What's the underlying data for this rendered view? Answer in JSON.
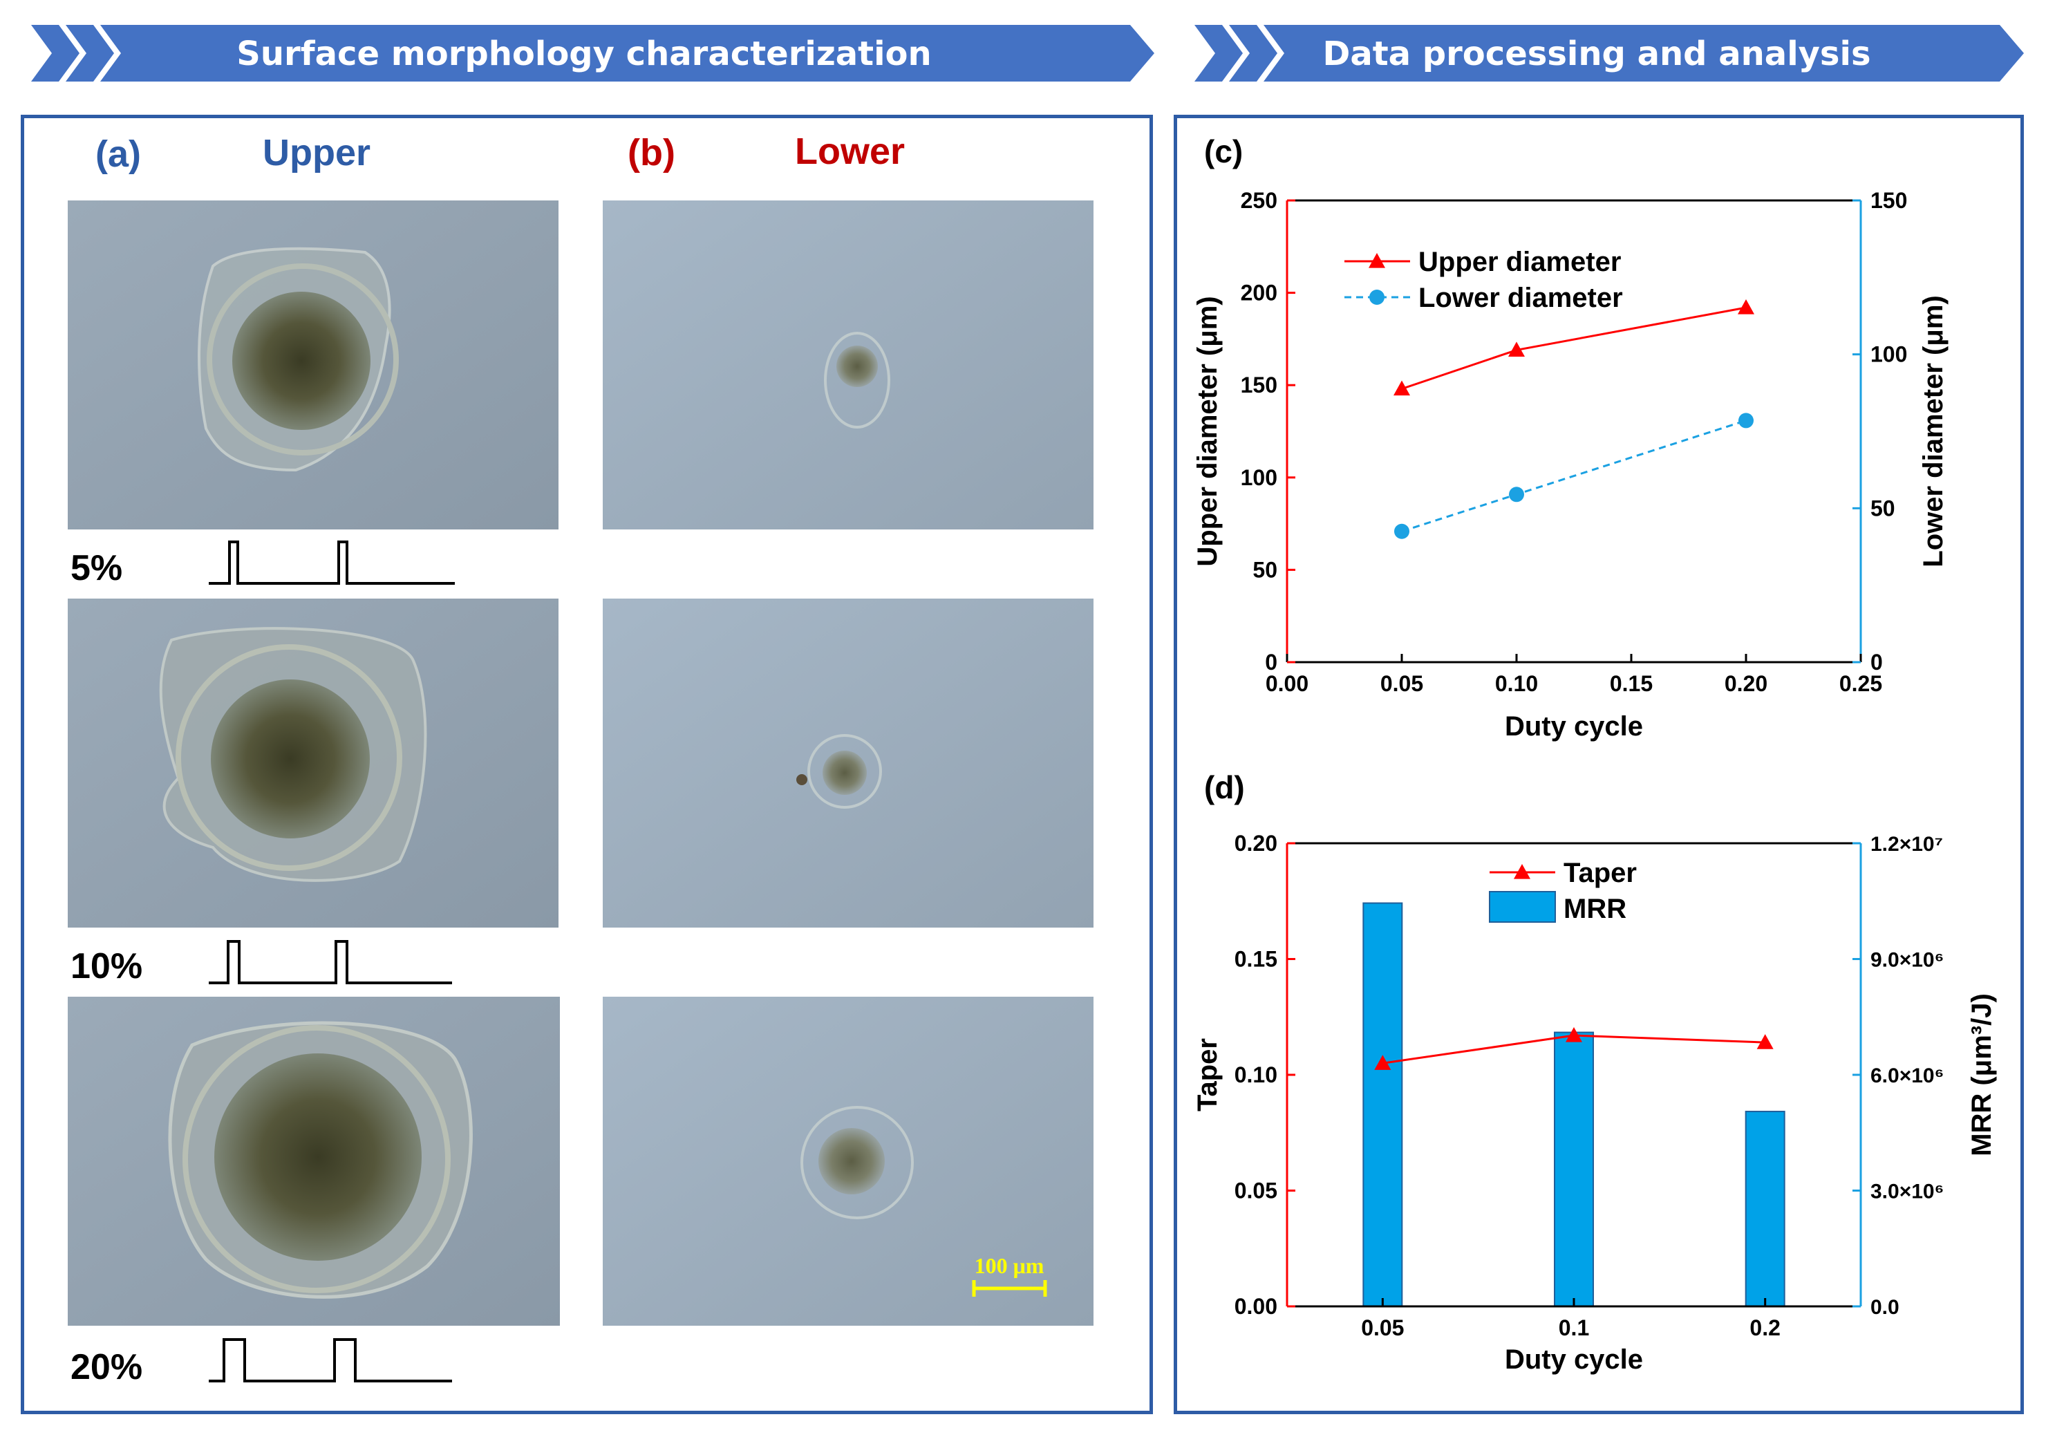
{
  "banners": {
    "left": "Surface morphology characterization",
    "right": "Data processing and analysis"
  },
  "panel_a": {
    "letter": "(a)",
    "title": "Upper"
  },
  "panel_b": {
    "letter": "(b)",
    "title": "Lower"
  },
  "duty_labels": [
    "5%",
    "10%",
    "20%"
  ],
  "scale_bar": "100 μm",
  "colors": {
    "banner": "#4472C4",
    "frame": "#2E5CA6",
    "upper": "#FF0000",
    "lower": "#1BA1E2",
    "bar": "#00A2E8"
  },
  "chart_data": [
    {
      "panel": "(c)",
      "type": "line",
      "xlabel": "Duty cycle",
      "ylabel": "Upper diameter (μm)",
      "y2label": "Lower diameter (μm)",
      "xlim": [
        0,
        0.25
      ],
      "ylim": [
        0,
        250
      ],
      "y2lim": [
        0,
        150
      ],
      "xticks": [
        "0.00",
        "0.05",
        "0.10",
        "0.15",
        "0.20",
        "0.25"
      ],
      "yticks": [
        "0",
        "50",
        "100",
        "150",
        "200",
        "250"
      ],
      "y2ticks": [
        "0",
        "50",
        "100",
        "150"
      ],
      "series": [
        {
          "name": "Upper diameter",
          "axis": "left",
          "marker": "triangle",
          "style": "solid",
          "x": [
            0.05,
            0.1,
            0.2
          ],
          "values": [
            148,
            169,
            192
          ]
        },
        {
          "name": "Lower diameter",
          "axis": "right",
          "marker": "circle",
          "style": "dashed",
          "x": [
            0.05,
            0.1,
            0.2
          ],
          "values": [
            42.5,
            54.5,
            78.5
          ]
        }
      ]
    },
    {
      "panel": "(d)",
      "type": "bar",
      "xlabel": "Duty cycle",
      "ylabel": "Taper",
      "y2label": "MRR (μm³/J)",
      "categories": [
        "0.05",
        "0.1",
        "0.2"
      ],
      "ylim": [
        0,
        0.2
      ],
      "y2lim": [
        0,
        12000000
      ],
      "yticks": [
        "0.00",
        "0.05",
        "0.10",
        "0.15",
        "0.20"
      ],
      "y2ticks": [
        "0.0",
        "3.0×10⁶",
        "6.0×10⁶",
        "9.0×10⁶",
        "1.2×10⁷"
      ],
      "series": [
        {
          "name": "Taper",
          "type": "line",
          "axis": "left",
          "marker": "triangle",
          "values": [
            0.105,
            0.117,
            0.114
          ]
        },
        {
          "name": "MRR",
          "type": "bar",
          "axis": "right",
          "values": [
            10450000,
            7100000,
            5050000
          ]
        }
      ]
    }
  ]
}
